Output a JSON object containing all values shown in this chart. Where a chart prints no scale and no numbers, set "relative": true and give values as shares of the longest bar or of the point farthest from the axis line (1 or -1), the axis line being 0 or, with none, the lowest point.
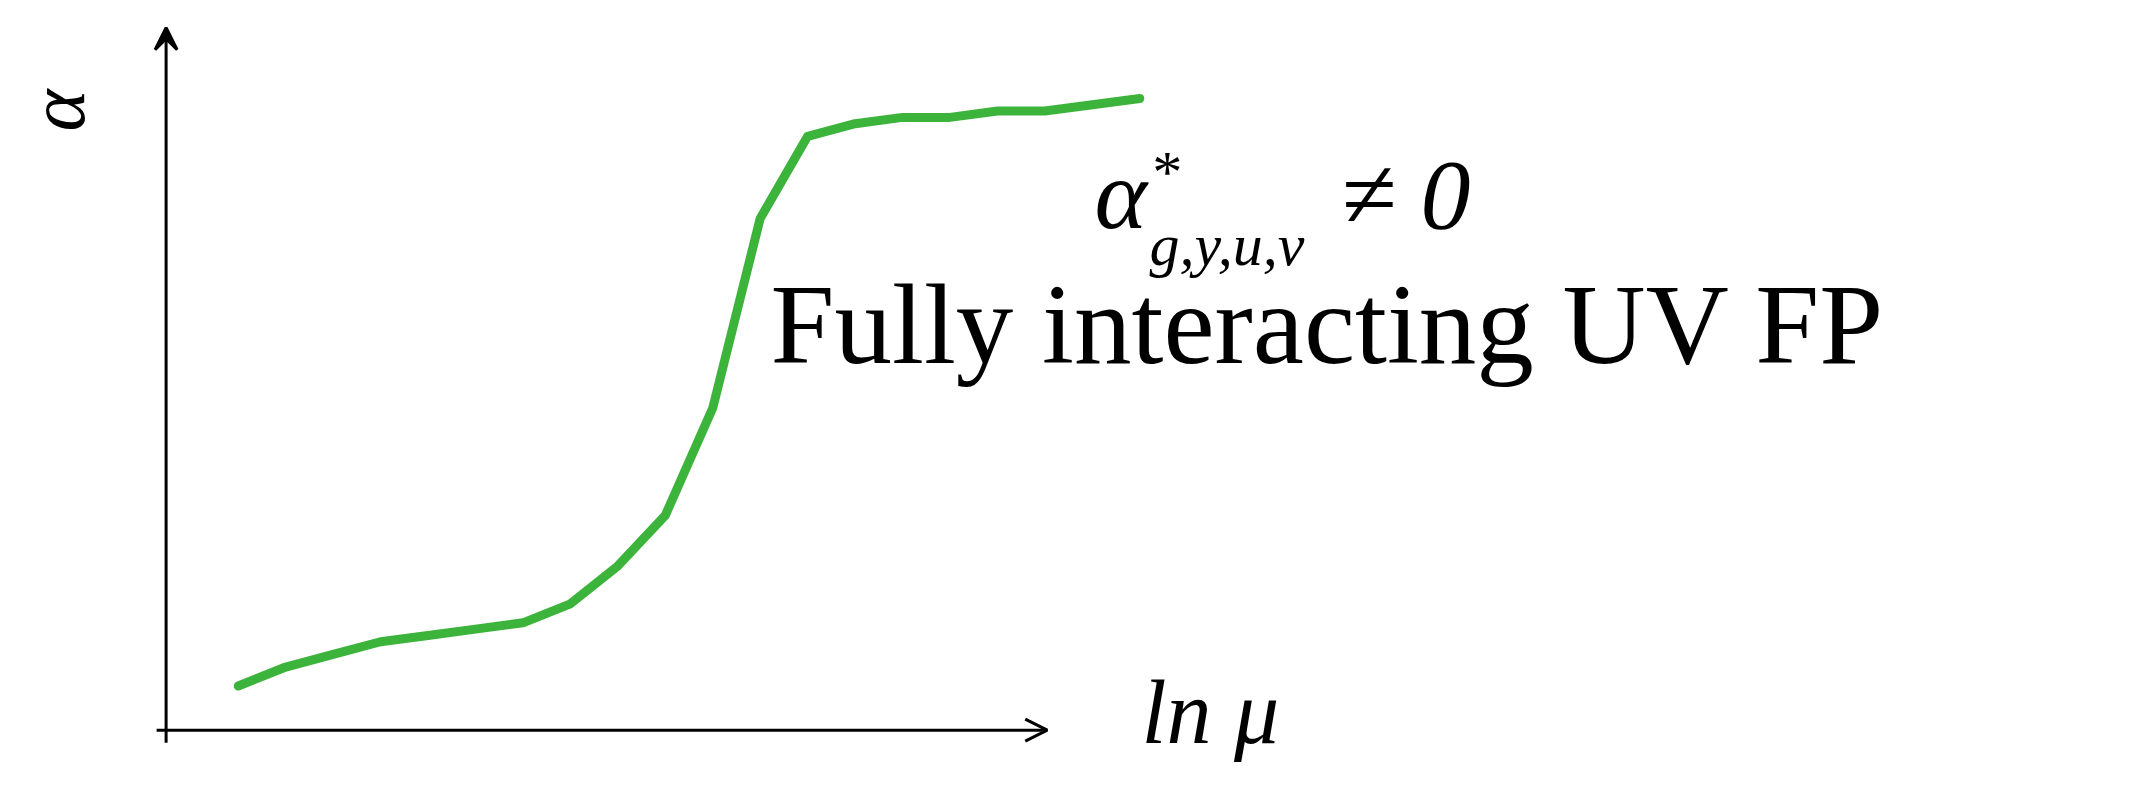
{
  "chart_data": {
    "type": "line",
    "relative": true,
    "tick_labels": false,
    "xlabel": "ln μ",
    "ylabel": "α",
    "categories": [
      null,
      null,
      null,
      null,
      null,
      null,
      null,
      null,
      null,
      null,
      null,
      null,
      null,
      null,
      null,
      null,
      null,
      null,
      null,
      null
    ],
    "series": [
      {
        "color": "#3cb43c",
        "values": [
          0.07,
          0.1,
          0.12,
          0.14,
          0.15,
          0.16,
          0.17,
          0.2,
          0.26,
          0.34,
          0.51,
          0.81,
          0.94,
          0.96,
          0.97,
          0.97,
          0.98,
          0.98,
          0.99,
          1.0
        ]
      }
    ],
    "annotations": [
      "α$^{*}$$_{g,y,u,v}$ ≠ 0",
      "Fully interacting UV FP"
    ]
  }
}
